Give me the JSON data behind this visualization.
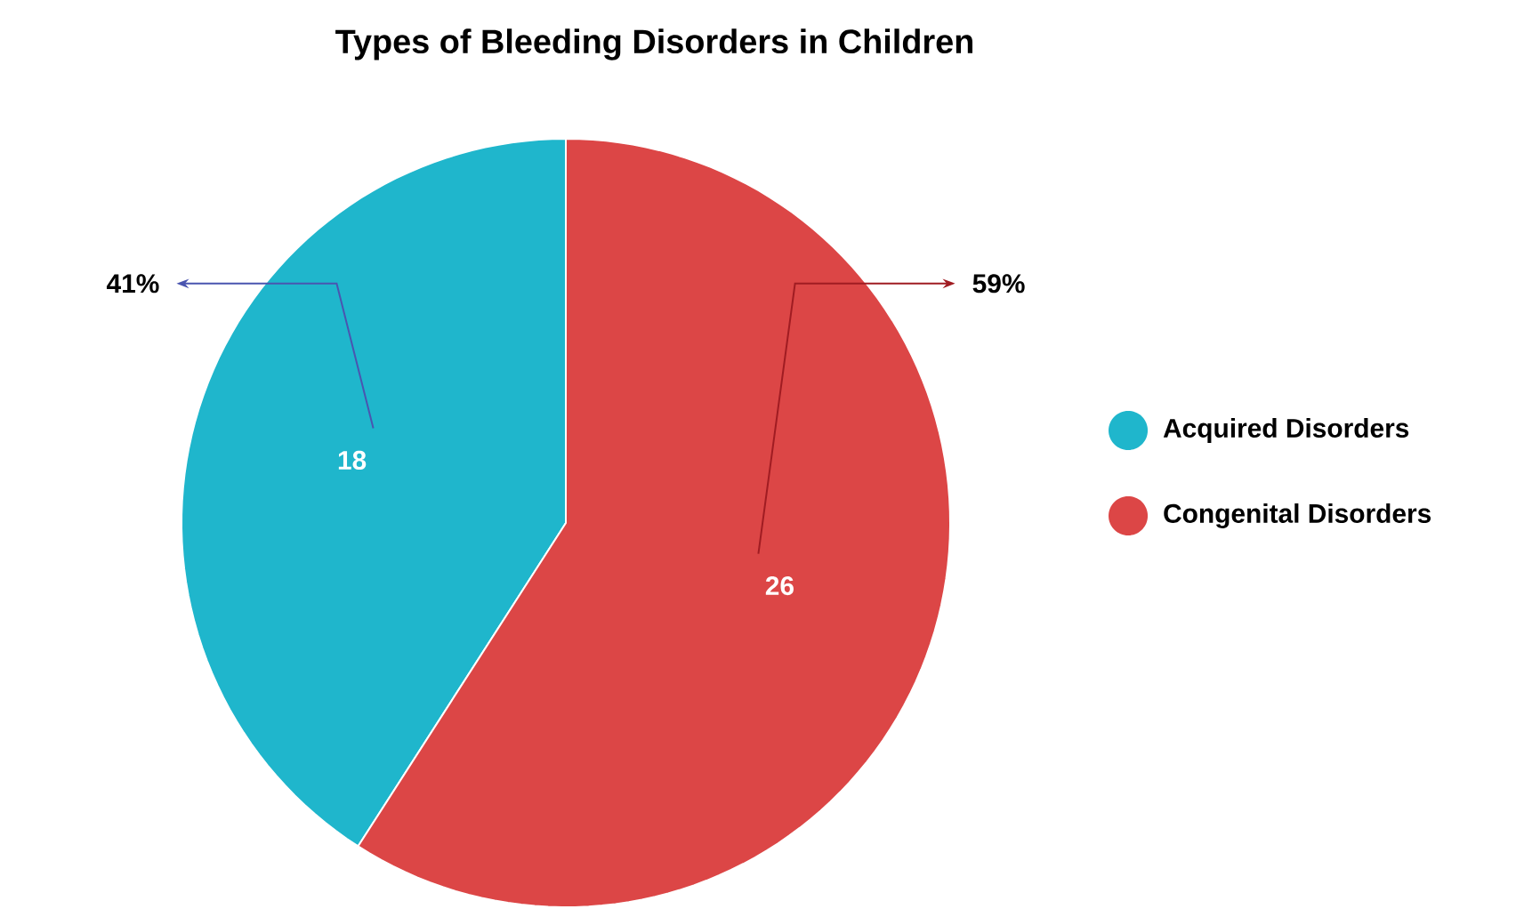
{
  "chart_data": {
    "type": "pie",
    "title": "Types of Bleeding Disorders in Children",
    "categories": [
      "Acquired Disorders",
      "Congenital Disorders"
    ],
    "values": [
      18,
      26
    ],
    "colors": [
      "#1fb6cc",
      "#dc4646"
    ],
    "data_labels": true,
    "annotations": [
      "41%",
      "59%"
    ],
    "legend": "right"
  }
}
